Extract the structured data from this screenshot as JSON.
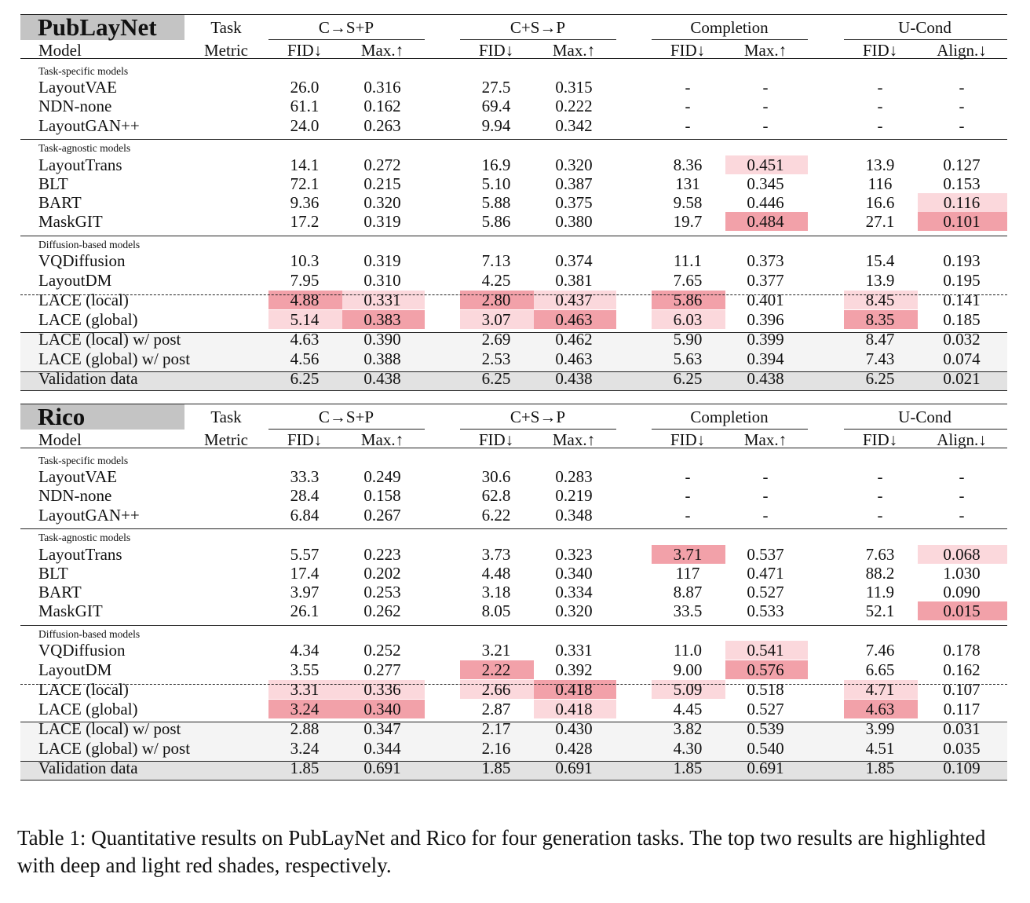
{
  "tables": [
    {
      "title": "PubLayNet",
      "header": {
        "task_label": "Task",
        "metric_label": "Metric",
        "model_label": "Model",
        "groups": [
          "C→S+P",
          "C+S→P",
          "Completion",
          "U-Cond"
        ],
        "metrics": [
          "FID↓",
          "Max.↑",
          "FID↓",
          "Max.↑",
          "FID↓",
          "Max.↑",
          "FID↓",
          "Align.↓"
        ]
      },
      "rows": [
        {
          "type": "group",
          "label": "Task-specific models"
        },
        {
          "type": "data",
          "model": "LayoutVAE",
          "values": [
            "26.0",
            "0.316",
            "27.5",
            "0.315",
            "-",
            "-",
            "-",
            "-"
          ],
          "highlights": [
            "",
            "",
            "",
            "",
            "",
            "",
            "",
            ""
          ]
        },
        {
          "type": "data",
          "model": "NDN-none",
          "values": [
            "61.1",
            "0.162",
            "69.4",
            "0.222",
            "-",
            "-",
            "-",
            "-"
          ],
          "highlights": [
            "",
            "",
            "",
            "",
            "",
            "",
            "",
            ""
          ]
        },
        {
          "type": "data",
          "model": "LayoutGAN++",
          "values": [
            "24.0",
            "0.263",
            "9.94",
            "0.342",
            "-",
            "-",
            "-",
            "-"
          ],
          "highlights": [
            "",
            "",
            "",
            "",
            "",
            "",
            "",
            ""
          ]
        },
        {
          "type": "group",
          "label": "Task-agnostic models"
        },
        {
          "type": "data",
          "model": "LayoutTrans",
          "values": [
            "14.1",
            "0.272",
            "16.9",
            "0.320",
            "8.36",
            "0.451",
            "13.9",
            "0.127"
          ],
          "highlights": [
            "",
            "",
            "",
            "",
            "",
            "light",
            "",
            ""
          ]
        },
        {
          "type": "data",
          "model": "BLT",
          "values": [
            "72.1",
            "0.215",
            "5.10",
            "0.387",
            "131",
            "0.345",
            "116",
            "0.153"
          ],
          "highlights": [
            "",
            "",
            "",
            "",
            "",
            "",
            "",
            ""
          ]
        },
        {
          "type": "data",
          "model": "BART",
          "values": [
            "9.36",
            "0.320",
            "5.88",
            "0.375",
            "9.58",
            "0.446",
            "16.6",
            "0.116"
          ],
          "highlights": [
            "",
            "",
            "",
            "",
            "",
            "",
            "",
            "light"
          ]
        },
        {
          "type": "data",
          "model": "MaskGIT",
          "values": [
            "17.2",
            "0.319",
            "5.86",
            "0.380",
            "19.7",
            "0.484",
            "27.1",
            "0.101"
          ],
          "highlights": [
            "",
            "",
            "",
            "",
            "",
            "deep",
            "",
            "deep"
          ]
        },
        {
          "type": "group",
          "label": "Diffusion-based models"
        },
        {
          "type": "data",
          "model": "VQDiffusion",
          "values": [
            "10.3",
            "0.319",
            "7.13",
            "0.374",
            "11.1",
            "0.373",
            "15.4",
            "0.193"
          ],
          "highlights": [
            "",
            "",
            "",
            "",
            "",
            "",
            "",
            ""
          ]
        },
        {
          "type": "data",
          "model": "LayoutDM",
          "values": [
            "7.95",
            "0.310",
            "4.25",
            "0.381",
            "7.65",
            "0.377",
            "13.9",
            "0.195"
          ],
          "highlights": [
            "",
            "",
            "",
            "",
            "",
            "",
            "",
            ""
          ]
        },
        {
          "type": "data",
          "model": "LACE (local)",
          "values": [
            "4.88",
            "0.331",
            "2.80",
            "0.437",
            "5.86",
            "0.401",
            "8.45",
            "0.141"
          ],
          "highlights": [
            "deep",
            "light",
            "deep",
            "light",
            "deep",
            "",
            "light",
            ""
          ]
        },
        {
          "type": "data",
          "model": "LACE (global)",
          "values": [
            "5.14",
            "0.383",
            "3.07",
            "0.463",
            "6.03",
            "0.396",
            "8.35",
            "0.185"
          ],
          "highlights": [
            "light",
            "deep",
            "light",
            "deep",
            "light",
            "",
            "deep",
            ""
          ]
        },
        {
          "type": "data",
          "model": "LACE (local) w/ post",
          "values": [
            "4.63",
            "0.390",
            "2.69",
            "0.462",
            "5.90",
            "0.399",
            "8.47",
            "0.032"
          ],
          "highlights": [
            "",
            "",
            "",
            "",
            "",
            "",
            "",
            ""
          ]
        },
        {
          "type": "data",
          "model": "LACE (global) w/ post",
          "values": [
            "4.56",
            "0.388",
            "2.53",
            "0.463",
            "5.63",
            "0.394",
            "7.43",
            "0.074"
          ],
          "highlights": [
            "",
            "",
            "",
            "",
            "",
            "",
            "",
            ""
          ]
        },
        {
          "type": "data",
          "model": "Validation data",
          "values": [
            "6.25",
            "0.438",
            "6.25",
            "0.438",
            "6.25",
            "0.438",
            "6.25",
            "0.021"
          ],
          "highlights": [
            "",
            "",
            "",
            "",
            "",
            "",
            "",
            ""
          ]
        }
      ]
    },
    {
      "title": "Rico",
      "header": {
        "task_label": "Task",
        "metric_label": "Metric",
        "model_label": "Model",
        "groups": [
          "C→S+P",
          "C+S→P",
          "Completion",
          "U-Cond"
        ],
        "metrics": [
          "FID↓",
          "Max.↑",
          "FID↓",
          "Max.↑",
          "FID↓",
          "Max.↑",
          "FID↓",
          "Align.↓"
        ]
      },
      "rows": [
        {
          "type": "group",
          "label": "Task-specific models"
        },
        {
          "type": "data",
          "model": "LayoutVAE",
          "values": [
            "33.3",
            "0.249",
            "30.6",
            "0.283",
            "-",
            "-",
            "-",
            "-"
          ],
          "highlights": [
            "",
            "",
            "",
            "",
            "",
            "",
            "",
            ""
          ]
        },
        {
          "type": "data",
          "model": "NDN-none",
          "values": [
            "28.4",
            "0.158",
            "62.8",
            "0.219",
            "-",
            "-",
            "-",
            "-"
          ],
          "highlights": [
            "",
            "",
            "",
            "",
            "",
            "",
            "",
            ""
          ]
        },
        {
          "type": "data",
          "model": "LayoutGAN++",
          "values": [
            "6.84",
            "0.267",
            "6.22",
            "0.348",
            "-",
            "-",
            "-",
            "-"
          ],
          "highlights": [
            "",
            "",
            "",
            "",
            "",
            "",
            "",
            ""
          ]
        },
        {
          "type": "group",
          "label": "Task-agnostic models"
        },
        {
          "type": "data",
          "model": "LayoutTrans",
          "values": [
            "5.57",
            "0.223",
            "3.73",
            "0.323",
            "3.71",
            "0.537",
            "7.63",
            "0.068"
          ],
          "highlights": [
            "",
            "",
            "",
            "",
            "deep",
            "",
            "",
            "light"
          ]
        },
        {
          "type": "data",
          "model": "BLT",
          "values": [
            "17.4",
            "0.202",
            "4.48",
            "0.340",
            "117",
            "0.471",
            "88.2",
            "1.030"
          ],
          "highlights": [
            "",
            "",
            "",
            "",
            "",
            "",
            "",
            ""
          ]
        },
        {
          "type": "data",
          "model": "BART",
          "values": [
            "3.97",
            "0.253",
            "3.18",
            "0.334",
            "8.87",
            "0.527",
            "11.9",
            "0.090"
          ],
          "highlights": [
            "",
            "",
            "",
            "",
            "",
            "",
            "",
            ""
          ]
        },
        {
          "type": "data",
          "model": "MaskGIT",
          "values": [
            "26.1",
            "0.262",
            "8.05",
            "0.320",
            "33.5",
            "0.533",
            "52.1",
            "0.015"
          ],
          "highlights": [
            "",
            "",
            "",
            "",
            "",
            "",
            "",
            "deep"
          ]
        },
        {
          "type": "group",
          "label": "Diffusion-based models"
        },
        {
          "type": "data",
          "model": "VQDiffusion",
          "values": [
            "4.34",
            "0.252",
            "3.21",
            "0.331",
            "11.0",
            "0.541",
            "7.46",
            "0.178"
          ],
          "highlights": [
            "",
            "",
            "",
            "",
            "",
            "light",
            "",
            ""
          ]
        },
        {
          "type": "data",
          "model": "LayoutDM",
          "values": [
            "3.55",
            "0.277",
            "2.22",
            "0.392",
            "9.00",
            "0.576",
            "6.65",
            "0.162"
          ],
          "highlights": [
            "",
            "",
            "deep",
            "",
            "",
            "deep",
            "",
            ""
          ]
        },
        {
          "type": "data",
          "model": "LACE (local)",
          "values": [
            "3.31",
            "0.336",
            "2.66",
            "0.418",
            "5.09",
            "0.518",
            "4.71",
            "0.107"
          ],
          "highlights": [
            "light",
            "light",
            "light",
            "deep",
            "light",
            "",
            "light",
            ""
          ]
        },
        {
          "type": "data",
          "model": "LACE (global)",
          "values": [
            "3.24",
            "0.340",
            "2.87",
            "0.418",
            "4.45",
            "0.527",
            "4.63",
            "0.117"
          ],
          "highlights": [
            "deep",
            "deep",
            "",
            "light",
            "",
            "",
            "deep",
            ""
          ]
        },
        {
          "type": "data",
          "model": "LACE (local) w/ post",
          "values": [
            "2.88",
            "0.347",
            "2.17",
            "0.430",
            "3.82",
            "0.539",
            "3.99",
            "0.031"
          ],
          "highlights": [
            "",
            "",
            "",
            "",
            "",
            "",
            "",
            ""
          ]
        },
        {
          "type": "data",
          "model": "LACE (global) w/ post",
          "values": [
            "3.24",
            "0.344",
            "2.16",
            "0.428",
            "4.30",
            "0.540",
            "4.51",
            "0.035"
          ],
          "highlights": [
            "",
            "",
            "",
            "",
            "",
            "",
            "",
            ""
          ]
        },
        {
          "type": "data",
          "model": "Validation data",
          "values": [
            "1.85",
            "0.691",
            "1.85",
            "0.691",
            "1.85",
            "0.691",
            "1.85",
            "0.109"
          ],
          "highlights": [
            "",
            "",
            "",
            "",
            "",
            "",
            "",
            ""
          ]
        }
      ]
    }
  ],
  "caption": "Table 1: Quantitative results on PubLayNet and Rico for four generation tasks. The top two results are highlighted with deep and light red shades, respectively."
}
